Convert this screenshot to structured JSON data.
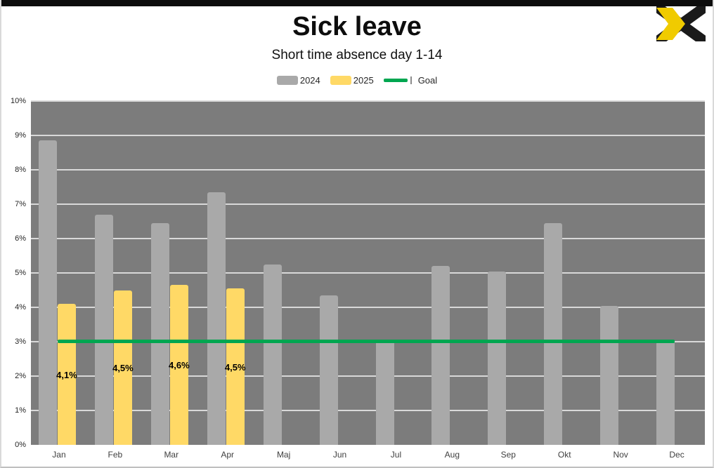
{
  "header": {
    "title": "Sick leave",
    "subtitle": "Short time absence day 1-14"
  },
  "logo": {
    "name": "x-logo",
    "yellow": "#f0cb00",
    "black": "#1a1a1a"
  },
  "chart_data": {
    "type": "bar",
    "title": "Sick leave",
    "subtitle": "Short time absence day 1-14",
    "categories": [
      "Jan",
      "Feb",
      "Mar",
      "Apr",
      "Maj",
      "Jun",
      "Jul",
      "Aug",
      "Sep",
      "Okt",
      "Nov",
      "Dec"
    ],
    "series": [
      {
        "name": "2024",
        "color": "#a9a9a9",
        "values": [
          8.85,
          6.7,
          6.45,
          7.35,
          5.25,
          4.35,
          3.05,
          5.2,
          5.05,
          6.45,
          4.05,
          3.0
        ]
      },
      {
        "name": "2025",
        "color": "#ffd966",
        "values": [
          4.1,
          4.5,
          4.65,
          4.55,
          null,
          null,
          null,
          null,
          null,
          null,
          null,
          null
        ],
        "data_labels": [
          "4,1%",
          "4,5%",
          "4,6%",
          "4,5%",
          null,
          null,
          null,
          null,
          null,
          null,
          null,
          null
        ]
      }
    ],
    "goal": {
      "name": "Goal",
      "value": 3.0,
      "color": "#00a650"
    },
    "ylim": [
      0,
      10
    ],
    "ytick_labels": [
      "0%",
      "1%",
      "2%",
      "3%",
      "4%",
      "5%",
      "6%",
      "7%",
      "8%",
      "9%",
      "10%"
    ],
    "plot_background": "#7c7c7c",
    "gridline_color": "#d9d9d9",
    "grid": true,
    "legend_position": "top"
  }
}
